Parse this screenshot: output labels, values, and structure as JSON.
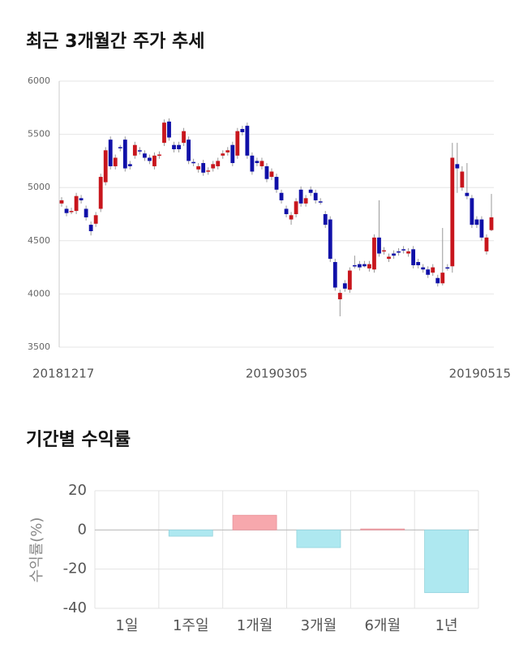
{
  "chart_data": [
    {
      "type": "candlestick",
      "title": "최근 3개월간 주가 추세",
      "categories": [
        "20181217",
        null,
        null,
        null,
        null,
        null,
        null,
        null,
        null,
        null,
        null,
        null,
        null,
        null,
        null,
        null,
        null,
        null,
        null,
        null,
        null,
        null,
        null,
        null,
        null,
        null,
        null,
        null,
        null,
        null,
        null,
        null,
        null,
        null,
        null,
        null,
        null,
        null,
        null,
        null,
        null,
        null,
        null,
        null,
        "20190305",
        null,
        null,
        null,
        null,
        null,
        null,
        null,
        null,
        null,
        null,
        null,
        null,
        null,
        null,
        null,
        null,
        null,
        null,
        null,
        null,
        null,
        null,
        null,
        null,
        null,
        null,
        null,
        null,
        null,
        null,
        null,
        null,
        null,
        null,
        null,
        null,
        null,
        null,
        null,
        null,
        null,
        null,
        null,
        "20190515"
      ],
      "open": [
        4850,
        4800,
        4780,
        4780,
        4900,
        4800,
        4650,
        4660,
        4800,
        5050,
        5450,
        5200,
        5380,
        5450,
        5220,
        5300,
        5350,
        5320,
        5280,
        5200,
        5300,
        5420,
        5620,
        5400,
        5400,
        5420,
        5450,
        5240,
        5170,
        5230,
        5150,
        5180,
        5200,
        5300,
        5330,
        5400,
        5300,
        5550,
        5580,
        5300,
        5250,
        5200,
        5200,
        5100,
        5100,
        4950,
        4800,
        4700,
        4750,
        4980,
        4850,
        4980,
        4950,
        4870,
        4750,
        4700,
        4300,
        3950,
        4100,
        4040,
        4270,
        4280,
        4280,
        4240,
        4230,
        4530,
        4400,
        4330,
        4380,
        4400,
        4420,
        4380,
        4420,
        4300,
        4250,
        4230,
        4200,
        4150,
        4100,
        4250,
        4260,
        5220,
        5000,
        4950,
        4900,
        4700,
        4700,
        4400,
        4600
      ],
      "high": [
        4910,
        4830,
        4810,
        4950,
        4930,
        4830,
        4680,
        4770,
        5130,
        5380,
        5480,
        5310,
        5400,
        5480,
        5250,
        5430,
        5380,
        5350,
        5310,
        5330,
        5340,
        5640,
        5650,
        5430,
        5430,
        5560,
        5480,
        5270,
        5230,
        5260,
        5190,
        5250,
        5280,
        5350,
        5380,
        5430,
        5560,
        5580,
        5610,
        5330,
        5280,
        5280,
        5230,
        5180,
        5130,
        4980,
        4830,
        4770,
        4900,
        5010,
        4930,
        5010,
        4980,
        4900,
        4780,
        4730,
        4330,
        4040,
        4130,
        4250,
        4360,
        4310,
        4310,
        4310,
        4560,
        4880,
        4440,
        4380,
        4410,
        4430,
        4450,
        4430,
        4450,
        4330,
        4280,
        4260,
        4280,
        4180,
        4620,
        4280,
        5420,
        5420,
        5200,
        5230,
        4930,
        4730,
        4730,
        4560,
        4940
      ],
      "low": [
        4820,
        4730,
        4750,
        4750,
        4850,
        4690,
        4550,
        4630,
        4770,
        5020,
        5170,
        5170,
        5340,
        5150,
        5170,
        5270,
        5310,
        5250,
        5220,
        5170,
        5270,
        5390,
        5440,
        5330,
        5330,
        5390,
        5220,
        5200,
        5140,
        5110,
        5120,
        5150,
        5170,
        5270,
        5300,
        5200,
        5270,
        5490,
        5270,
        5120,
        5200,
        5170,
        5050,
        5070,
        4950,
        4850,
        4720,
        4650,
        4720,
        4820,
        4820,
        4920,
        4850,
        4840,
        4620,
        4300,
        4030,
        3790,
        4020,
        4010,
        4240,
        4220,
        4250,
        4210,
        4200,
        4350,
        4370,
        4300,
        4330,
        4360,
        4380,
        4350,
        4240,
        4240,
        4200,
        4150,
        4170,
        4070,
        4080,
        4220,
        4200,
        4950,
        4970,
        4890,
        4620,
        4620,
        4500,
        4370,
        4590
      ],
      "close": [
        4880,
        4760,
        4780,
        4920,
        4880,
        4720,
        4590,
        4740,
        5100,
        5350,
        5200,
        5280,
        5370,
        5180,
        5200,
        5400,
        5340,
        5280,
        5250,
        5300,
        5310,
        5610,
        5470,
        5360,
        5360,
        5530,
        5250,
        5230,
        5200,
        5140,
        5160,
        5220,
        5250,
        5320,
        5350,
        5230,
        5530,
        5520,
        5300,
        5150,
        5230,
        5250,
        5080,
        5150,
        4980,
        4880,
        4750,
        4740,
        4870,
        4850,
        4900,
        4950,
        4880,
        4860,
        4650,
        4330,
        4060,
        4010,
        4050,
        4220,
        4260,
        4250,
        4260,
        4280,
        4530,
        4380,
        4410,
        4350,
        4360,
        4390,
        4410,
        4400,
        4270,
        4270,
        4230,
        4180,
        4250,
        4100,
        4200,
        4240,
        5280,
        5180,
        5150,
        4920,
        4650,
        4650,
        4530,
        4530,
        4720
      ],
      "up_color": "#c8161d",
      "down_color": "#1010a8",
      "ylim": [
        3500,
        6000
      ],
      "yticks": [
        3500,
        4000,
        4500,
        5000,
        5500,
        6000
      ],
      "grid": true
    },
    {
      "type": "bar",
      "title": "기간별 수익률",
      "y_label": "수익률(%)",
      "categories": [
        "1일",
        "1주일",
        "1개월",
        "3개월",
        "6개월",
        "1년"
      ],
      "values": [
        0,
        -3.2,
        7.5,
        -9,
        0.5,
        -32
      ],
      "positive_color": "#f7a8ad",
      "negative_color": "#aee8f0",
      "ylim": [
        -40,
        20
      ],
      "yticks": [
        -40,
        -20,
        0,
        20
      ],
      "grid": true
    }
  ]
}
